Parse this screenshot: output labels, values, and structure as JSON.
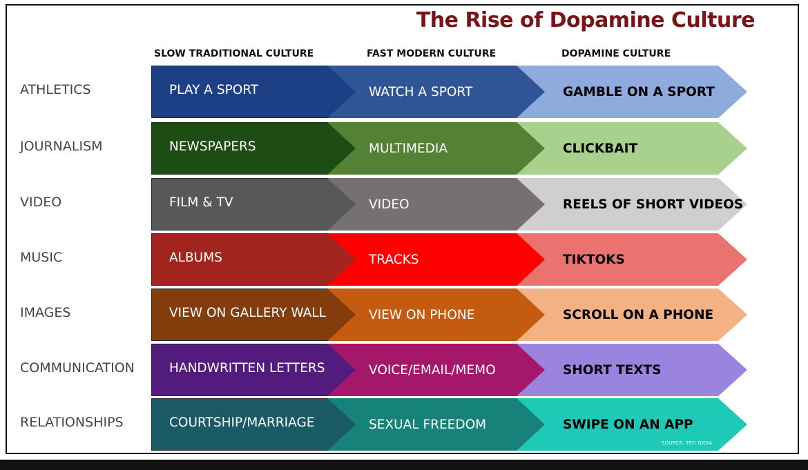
{
  "title": "The Rise of Dopamine Culture",
  "columns": [
    "SLOW TRADITIONAL CULTURE",
    "FAST MODERN CULTURE",
    "DOPAMINE CULTURE"
  ],
  "rows": [
    {
      "label": "ATHLETICS",
      "cells": [
        "PLAY A SPORT",
        "WATCH A SPORT",
        "GAMBLE ON A SPORT"
      ],
      "colors": [
        "#1c3f86",
        "#2f5597",
        "#8faadc"
      ],
      "text_colors": [
        "#ffffff",
        "#ffffff",
        "#000000"
      ]
    },
    {
      "label": "JOURNALISM",
      "cells": [
        "NEWSPAPERS",
        "MULTIMEDIA",
        "CLICKBAIT"
      ],
      "colors": [
        "#1e4d13",
        "#548235",
        "#a9d18e"
      ],
      "text_colors": [
        "#ffffff",
        "#ffffff",
        "#000000"
      ]
    },
    {
      "label": "VIDEO",
      "cells": [
        "FILM &  TV",
        "VIDEO",
        "REELS OF SHORT VIDEOS"
      ],
      "colors": [
        "#585858",
        "#767171",
        "#d0cece"
      ],
      "text_colors": [
        "#ffffff",
        "#ffffff",
        "#000000"
      ]
    },
    {
      "label": "MUSIC",
      "cells": [
        "ALBUMS",
        "TRACKS",
        "TIKTOKS"
      ],
      "colors": [
        "#a3241e",
        "#ff0000",
        "#ea7370"
      ],
      "text_colors": [
        "#ffffff",
        "#ffffff",
        "#000000"
      ]
    },
    {
      "label": "IMAGES",
      "cells": [
        "VIEW ON GALLERY WALL",
        "VIEW ON PHONE",
        "SCROLL ON A PHONE"
      ],
      "colors": [
        "#843c0c",
        "#c55a11",
        "#f4b183"
      ],
      "text_colors": [
        "#ffffff",
        "#ffffff",
        "#000000"
      ]
    },
    {
      "label": "COMMUNICATION",
      "cells": [
        "HANDWRITTEN LETTERS",
        "VOICE/EMAIL/MEMO",
        "SHORT TEXTS"
      ],
      "colors": [
        "#541b7e",
        "#a5176b",
        "#9a84e0"
      ],
      "text_colors": [
        "#ffffff",
        "#ffffff",
        "#000000"
      ]
    },
    {
      "label": "RELATIONSHIPS",
      "cells": [
        "COURTSHIP/MARRIAGE",
        "SEXUAL FREEDOM",
        "SWIPE ON AN APP"
      ],
      "colors": [
        "#1a5a64",
        "#17827a",
        "#1ecab7"
      ],
      "text_colors": [
        "#ffffff",
        "#ffffff",
        "#000000"
      ]
    }
  ],
  "source": "SOURCE: TED GIOIA"
}
